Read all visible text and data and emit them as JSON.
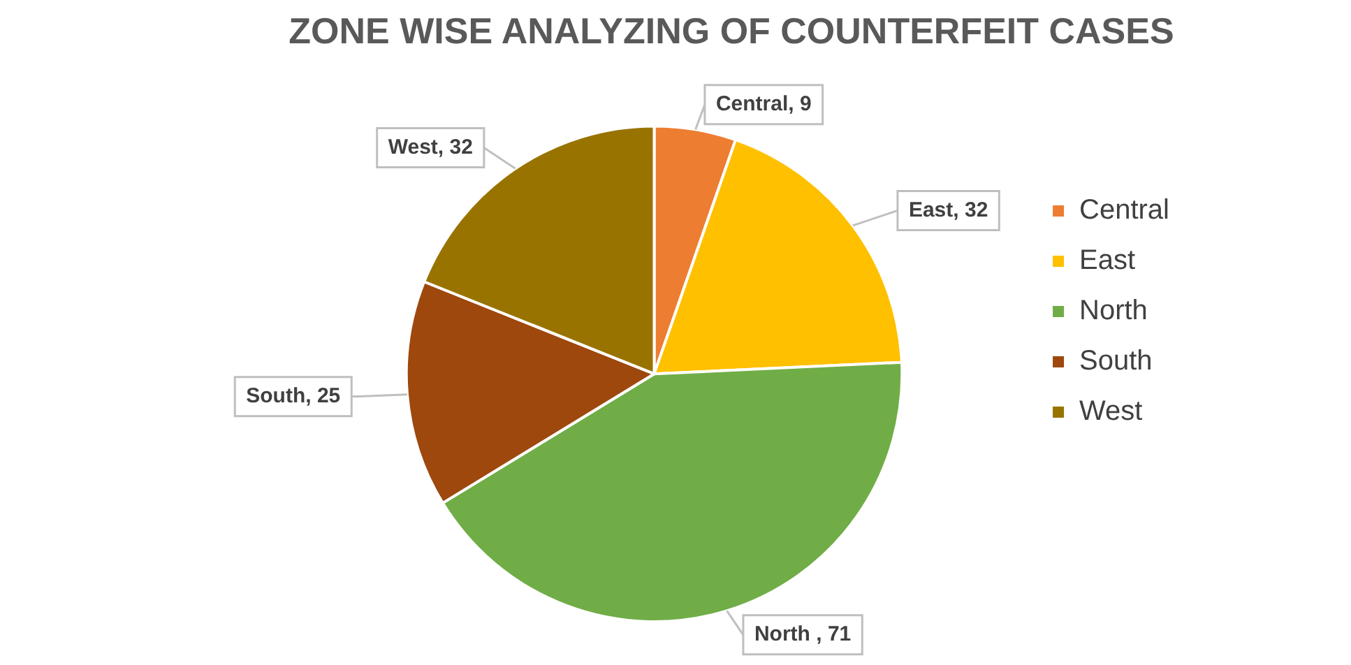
{
  "chart_data": {
    "type": "pie",
    "title": "ZONE WISE ANALYZING OF COUNTERFEIT CASES",
    "categories": [
      "Central",
      "East",
      "North",
      "South",
      "West"
    ],
    "values": [
      9,
      32,
      71,
      25,
      32
    ],
    "colors": [
      "#ed7d31",
      "#ffc000",
      "#70ad47",
      "#9e480e",
      "#997300"
    ],
    "value_labels": [
      "Central, 9",
      "East, 32",
      "North , 71",
      "South, 25",
      "West, 32"
    ],
    "legend": "right"
  }
}
